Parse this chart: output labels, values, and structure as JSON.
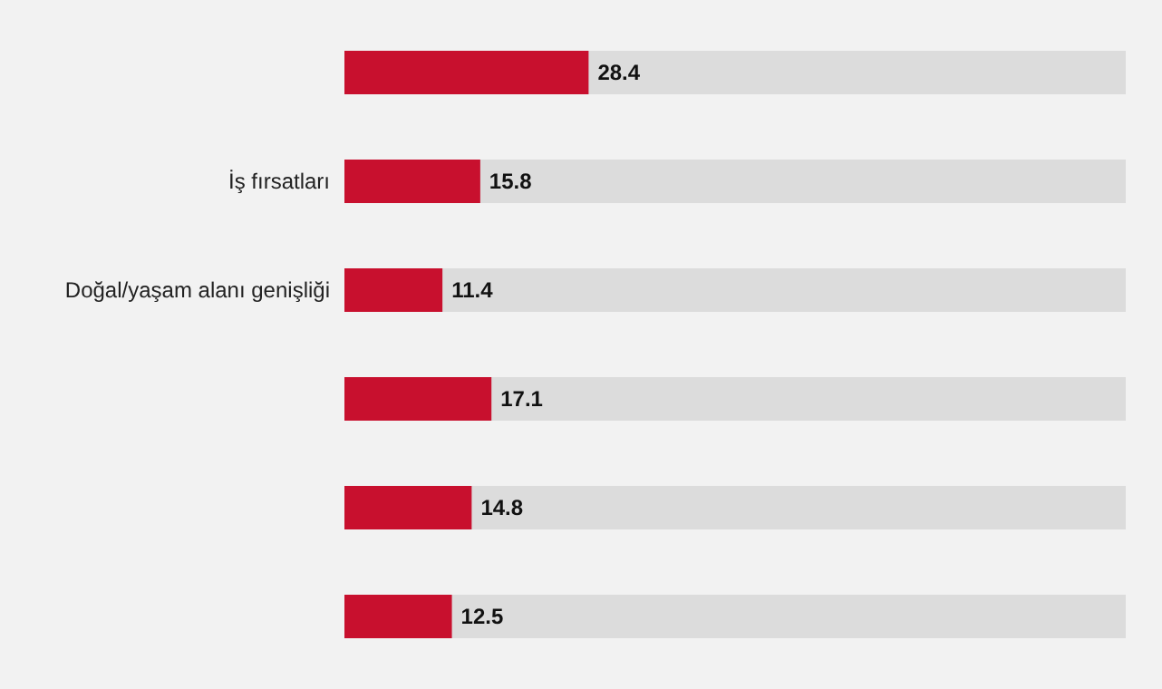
{
  "chart_data": {
    "type": "bar",
    "orientation": "horizontal",
    "categories": [
      null,
      "İş fırsatları",
      "Doğal/yaşam alanı genişliği",
      null,
      null,
      null
    ],
    "values": [
      28.4,
      15.8,
      11.4,
      17.1,
      14.8,
      12.5
    ],
    "color": "#c8102e",
    "data_labels": true
  }
}
